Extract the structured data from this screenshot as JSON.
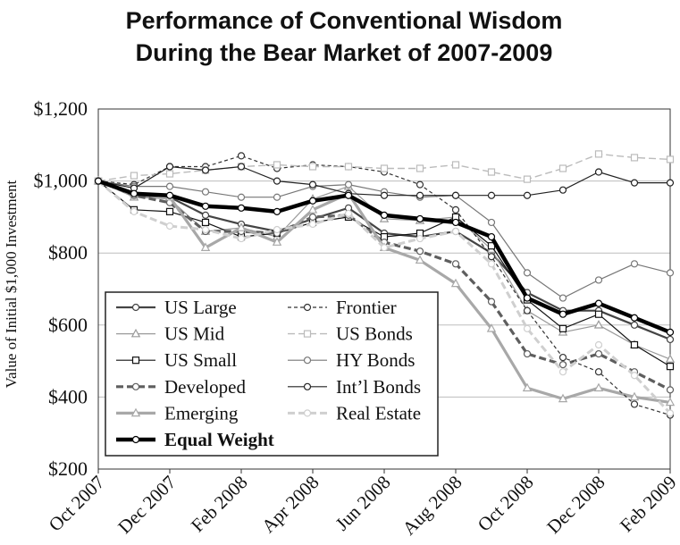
{
  "chart_data": {
    "type": "line",
    "title_lines": [
      "Performance of Conventional Wisdom",
      "During the Bear Market of 2007-2009"
    ],
    "ylabel": "Value of Initial $1,000 Investment",
    "xlabel": "",
    "ylim": [
      200,
      1200
    ],
    "yticks": [
      200,
      400,
      600,
      800,
      1000,
      1200
    ],
    "ytick_labels": [
      "$200",
      "$400",
      "$600",
      "$800",
      "$1,000",
      "$1,200"
    ],
    "x": [
      "Oct 2007",
      "Nov 2007",
      "Dec 2007",
      "Jan 2008",
      "Feb 2008",
      "Mar 2008",
      "Apr 2008",
      "May 2008",
      "Jun 2008",
      "Jul 2008",
      "Aug 2008",
      "Sep 2008",
      "Oct 2008",
      "Nov 2008",
      "Dec 2008",
      "Jan 2009",
      "Feb 2009"
    ],
    "xtick_labels": [
      "Oct 2007",
      "Dec 2007",
      "Feb 2008",
      "Apr 2008",
      "Jun 2008",
      "Aug 2008",
      "Oct 2008",
      "Dec 2008",
      "Feb 2009"
    ],
    "grid": "horizontal",
    "legend_placement": "bottom-left",
    "series": [
      {
        "name": "US Large",
        "color": "#444444",
        "dash": "",
        "width": 2.2,
        "marker": "circle",
        "values": [
          1000,
          960,
          955,
          905,
          880,
          860,
          895,
          925,
          855,
          845,
          860,
          800,
          690,
          640,
          640,
          600,
          560
        ]
      },
      {
        "name": "US Mid",
        "color": "#9a9a9a",
        "dash": "",
        "width": 1.2,
        "marker": "triangle",
        "values": [
          1000,
          955,
          950,
          860,
          870,
          845,
          950,
          985,
          895,
          890,
          900,
          810,
          640,
          580,
          600,
          545,
          505
        ]
      },
      {
        "name": "US Small",
        "color": "#111111",
        "dash": "",
        "width": 1.2,
        "marker": "square",
        "values": [
          1000,
          920,
          915,
          885,
          845,
          855,
          885,
          900,
          845,
          855,
          900,
          820,
          670,
          590,
          630,
          545,
          485
        ]
      },
      {
        "name": "Developed",
        "color": "#5e5e5e",
        "dash": "8,4",
        "width": 3.2,
        "marker": "circle",
        "values": [
          1000,
          960,
          940,
          860,
          860,
          855,
          900,
          905,
          830,
          805,
          770,
          665,
          520,
          490,
          520,
          470,
          420
        ]
      },
      {
        "name": "Emerging",
        "color": "#a8a8a8",
        "dash": "",
        "width": 3.2,
        "marker": "triangle",
        "values": [
          1000,
          965,
          955,
          815,
          870,
          830,
          920,
          965,
          815,
          780,
          715,
          590,
          425,
          395,
          425,
          400,
          385
        ]
      },
      {
        "name": "Equal Weight",
        "color": "#000000",
        "dash": "",
        "width": 4.5,
        "marker": "circle",
        "values": [
          1000,
          965,
          960,
          930,
          925,
          915,
          945,
          960,
          905,
          895,
          885,
          845,
          675,
          630,
          660,
          620,
          580
        ]
      },
      {
        "name": "Frontier",
        "color": "#333333",
        "dash": "4,3",
        "width": 1.2,
        "marker": "circle",
        "values": [
          1000,
          990,
          1040,
          1040,
          1070,
          1035,
          1045,
          1040,
          1025,
          990,
          920,
          790,
          640,
          510,
          470,
          380,
          350
        ]
      },
      {
        "name": "US Bonds",
        "color": "#bbbbbb",
        "dash": "8,4",
        "width": 1.4,
        "marker": "square",
        "values": [
          1000,
          1015,
          1020,
          1030,
          1040,
          1045,
          1040,
          1040,
          1035,
          1035,
          1045,
          1025,
          1005,
          1035,
          1075,
          1065,
          1060
        ]
      },
      {
        "name": "HY Bonds",
        "color": "#777777",
        "dash": "",
        "width": 1.2,
        "marker": "circle",
        "values": [
          1000,
          985,
          985,
          970,
          955,
          955,
          985,
          990,
          970,
          955,
          960,
          885,
          745,
          675,
          725,
          770,
          745
        ]
      },
      {
        "name": "Int’l Bonds",
        "color": "#222222",
        "dash": "",
        "width": 1.2,
        "marker": "circle",
        "values": [
          1000,
          980,
          1040,
          1030,
          1040,
          1000,
          990,
          965,
          960,
          960,
          960,
          960,
          960,
          975,
          1025,
          995,
          995
        ]
      },
      {
        "name": "Real Estate",
        "color": "#cfcfcf",
        "dash": "8,4",
        "width": 3.0,
        "marker": "circle",
        "values": [
          1000,
          915,
          875,
          865,
          840,
          865,
          880,
          910,
          815,
          840,
          860,
          770,
          590,
          470,
          545,
          460,
          355
        ]
      }
    ]
  }
}
